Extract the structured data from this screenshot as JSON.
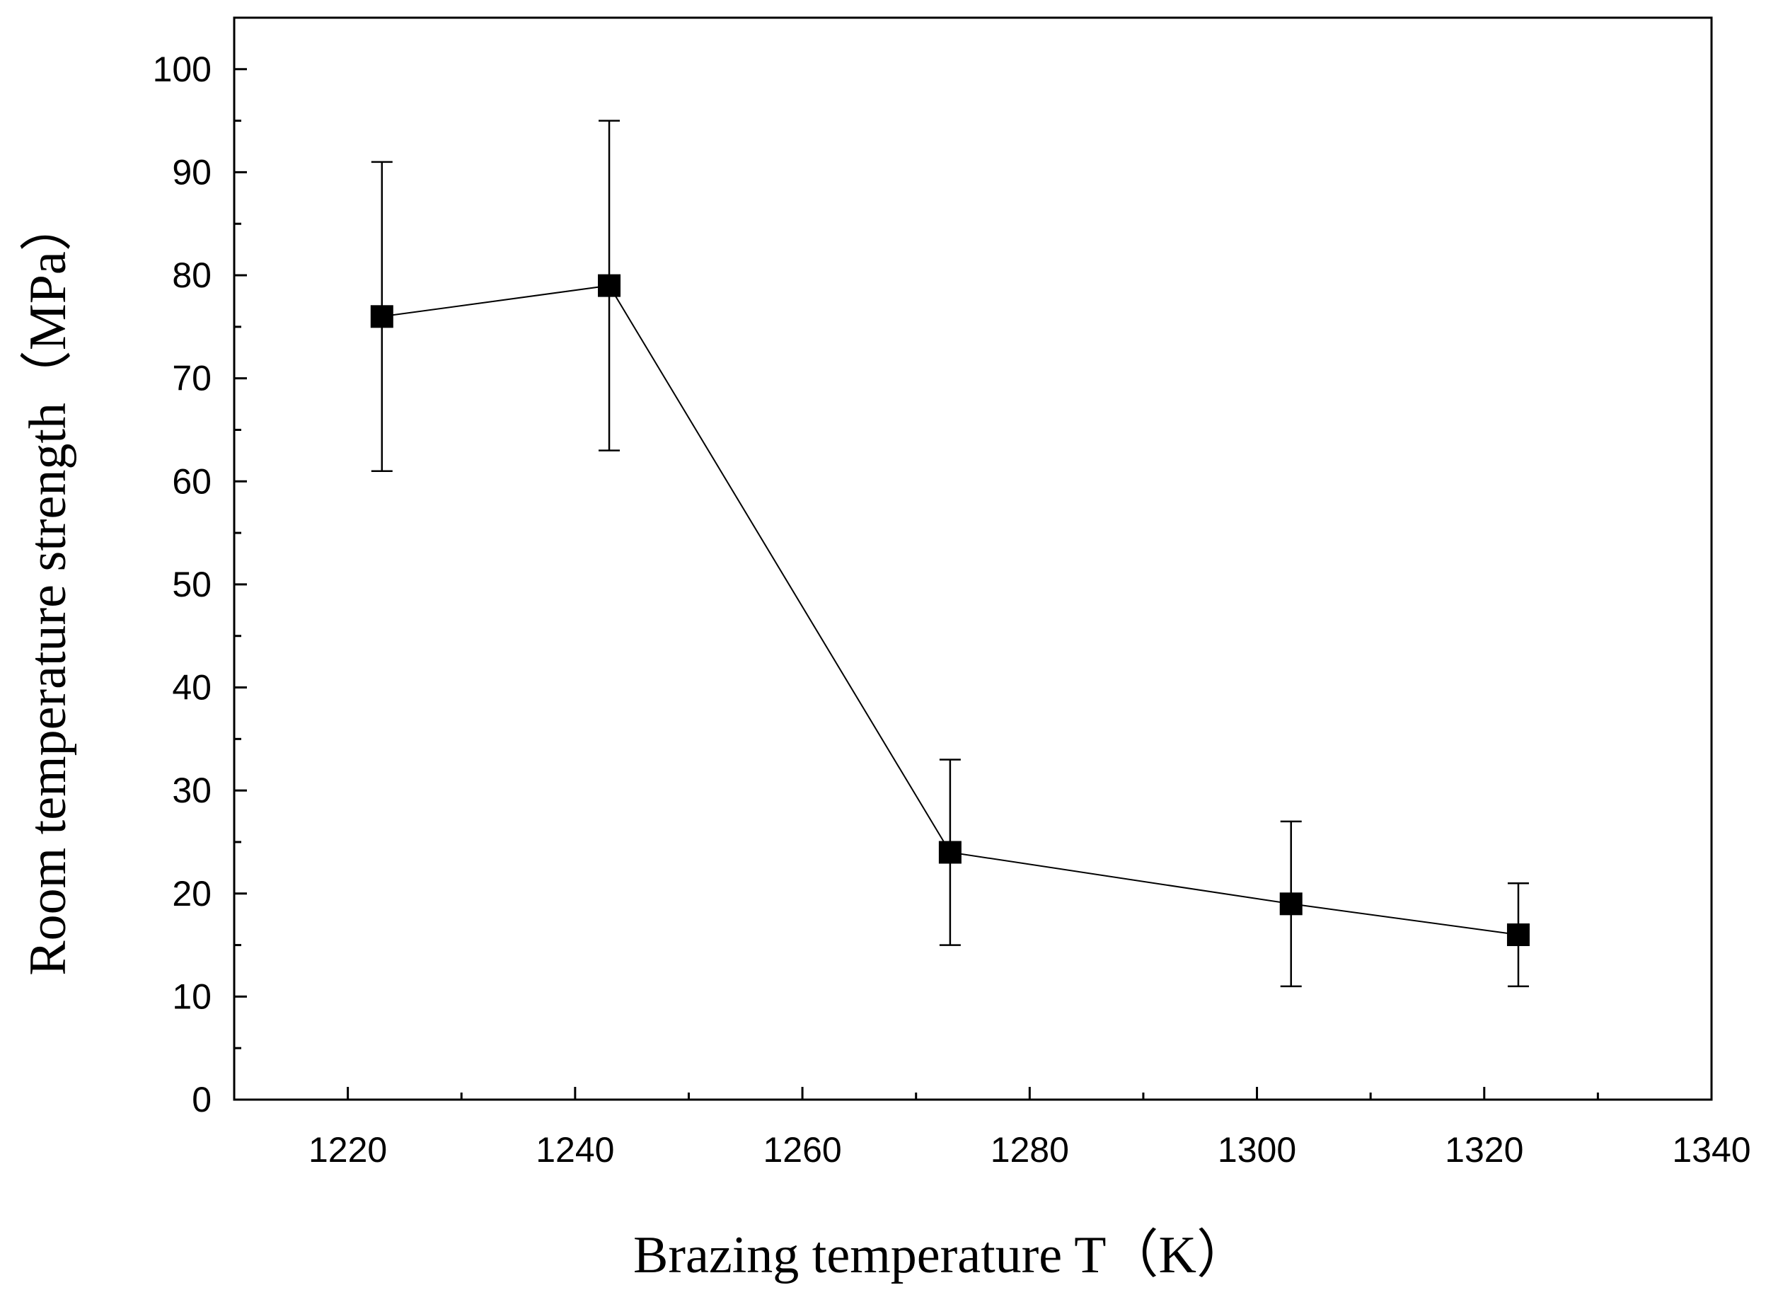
{
  "chart_data": {
    "type": "line",
    "title": "",
    "xlabel": "Brazing temperature T（K）",
    "ylabel": "Room temperature strength（MPa）",
    "xlim": [
      1210,
      1340
    ],
    "ylim": [
      0,
      105
    ],
    "x_ticks": [
      1220,
      1240,
      1260,
      1280,
      1300,
      1320,
      1340
    ],
    "x_minor_ticks": [
      1230,
      1250,
      1270,
      1290,
      1310,
      1330
    ],
    "y_ticks": [
      0,
      10,
      20,
      30,
      40,
      50,
      60,
      70,
      80,
      90,
      100
    ],
    "y_minor_ticks": [
      5,
      15,
      25,
      35,
      45,
      55,
      65,
      75,
      85,
      95
    ],
    "grid": false,
    "marker": "square",
    "colors": {
      "line": "#000000",
      "marker": "#000000",
      "axis": "#000000"
    },
    "series": [
      {
        "name": "Room temperature strength",
        "x": [
          1223,
          1243,
          1273,
          1303,
          1323
        ],
        "y": [
          76,
          79,
          24,
          19,
          16
        ],
        "err_low": [
          61,
          63,
          15,
          11,
          11
        ],
        "err_high": [
          91,
          95,
          33,
          27,
          21
        ]
      }
    ]
  }
}
